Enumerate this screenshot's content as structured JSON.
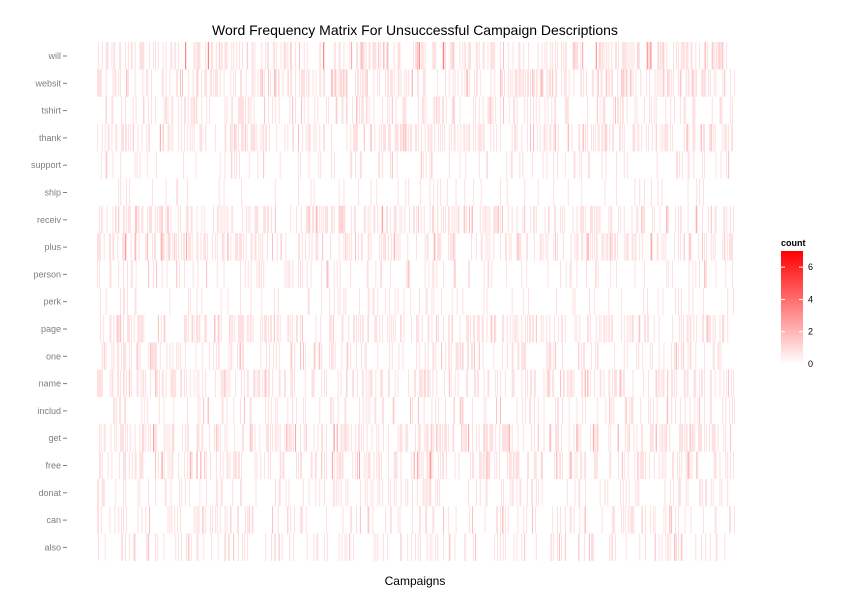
{
  "chart_data": {
    "type": "heatmap",
    "title": "Word Frequency Matrix For Unsuccessful Campaign Descriptions",
    "xlabel": "Campaigns",
    "ylabel": "",
    "rows": [
      "will",
      "websit",
      "tshirt",
      "thank",
      "support",
      "ship",
      "receiv",
      "plus",
      "person",
      "perk",
      "page",
      "one",
      "name",
      "includ",
      "get",
      "free",
      "donat",
      "can",
      "also"
    ],
    "n_campaigns": 660,
    "legend": {
      "title": "count",
      "ticks": [
        0,
        2,
        4,
        6
      ],
      "min": 0,
      "max": 7,
      "position": "right"
    },
    "colors": {
      "low": "#ffffff",
      "high": "#ff0000"
    },
    "density": {
      "will": 0.38,
      "websit": 0.36,
      "tshirt": 0.26,
      "thank": 0.34,
      "support": 0.12,
      "ship": 0.07,
      "receiv": 0.33,
      "plus": 0.3,
      "person": 0.17,
      "perk": 0.12,
      "page": 0.3,
      "one": 0.24,
      "name": 0.3,
      "includ": 0.18,
      "get": 0.35,
      "free": 0.33,
      "donat": 0.16,
      "can": 0.2,
      "also": 0.2
    },
    "max_count": {
      "will": 4,
      "websit": 2,
      "tshirt": 2,
      "thank": 3,
      "support": 2,
      "ship": 1,
      "receiv": 3,
      "plus": 3,
      "person": 2,
      "perk": 1,
      "page": 2,
      "one": 2,
      "name": 2,
      "includ": 2,
      "get": 3,
      "free": 3,
      "donat": 1,
      "can": 2,
      "also": 2
    },
    "grid": false
  }
}
